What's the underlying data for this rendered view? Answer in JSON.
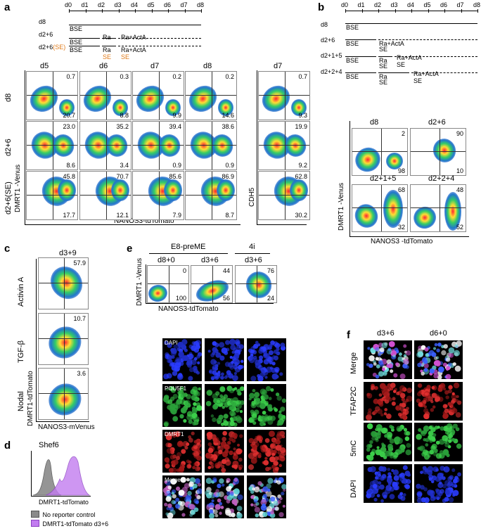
{
  "panels": {
    "a": {
      "label": "a",
      "timeline_days": [
        "d0",
        "d1",
        "d2",
        "d3",
        "d4",
        "d5",
        "d6",
        "d7",
        "d8"
      ],
      "rows": [
        {
          "name": "d8",
          "segments": [
            "BSE"
          ]
        },
        {
          "name": "d2+6",
          "segments": [
            "BSE",
            "Ra",
            "Ra+ActA"
          ]
        },
        {
          "name_main": "d2+6",
          "name_se": "(SE)",
          "segments": [
            "BSE",
            "Ra",
            "Ra+ActA"
          ],
          "se_marks": [
            "SE",
            "SE"
          ]
        }
      ],
      "col_headers": [
        "d5",
        "d6",
        "d7",
        "d8"
      ],
      "cdh5_header": "d7",
      "row_labels": [
        "d8",
        "d2+6",
        "d2+6(SE)"
      ],
      "y_axis": "DMRT1 -Venus",
      "x_axis": "NANOS3-tdTomato",
      "cdh5_axis": "CDH5",
      "values": [
        [
          [
            "0.7",
            "20.7"
          ],
          [
            "0.3",
            "8.8"
          ],
          [
            "0.2",
            "9.9"
          ],
          [
            "0.2",
            "14.6"
          ],
          [
            "0.7",
            "9.3"
          ]
        ],
        [
          [
            "23.0",
            "8.6"
          ],
          [
            "35.2",
            "3.4"
          ],
          [
            "39.4",
            "0.9"
          ],
          [
            "38.6",
            "0.9"
          ],
          [
            "19.9",
            "9.2"
          ]
        ],
        [
          [
            "45.8",
            "17.7"
          ],
          [
            "70.7",
            "12.1"
          ],
          [
            "85.6",
            "7.9"
          ],
          [
            "86.9",
            "8.7"
          ],
          [
            "62.8",
            "30.2"
          ]
        ]
      ]
    },
    "b": {
      "label": "b",
      "timeline_days": [
        "d0",
        "d1",
        "d2",
        "d3",
        "d4",
        "d5",
        "d6",
        "d7",
        "d8"
      ],
      "rows": [
        {
          "name": "d8",
          "segs": [
            "BSE"
          ]
        },
        {
          "name": "d2+6",
          "segs": [
            "BSE",
            "Ra+ActA"
          ],
          "se": [
            "SE"
          ]
        },
        {
          "name": "d2+1+5",
          "segs": [
            "BSE",
            "Ra",
            "Ra+ActA"
          ],
          "se": [
            "SE",
            "SE"
          ]
        },
        {
          "name": "d2+2+4",
          "segs": [
            "BSE",
            "Ra",
            "Ra+ActA"
          ],
          "se": [
            "SE",
            "SE"
          ]
        }
      ],
      "plots": [
        {
          "title": "d8",
          "tr": "2",
          "br": "98"
        },
        {
          "title": "d2+6",
          "tr": "90",
          "br": "10"
        },
        {
          "title": "d2+1+5",
          "tr": "68",
          "br": "32"
        },
        {
          "title": "d2+2+4",
          "tr": "48",
          "br": "52"
        }
      ],
      "y_axis": "DMRT1 -Venus",
      "x_axis": "NANOS3 -tdTomato"
    },
    "c": {
      "label": "c",
      "title": "d3+9",
      "plots": [
        {
          "row": "Activin A",
          "val": "57.9"
        },
        {
          "row": "TGF-β",
          "val": "10.7"
        },
        {
          "row": "Nodal",
          "val": "3.6"
        }
      ],
      "y_axis": "DMRT1-tdTomato",
      "x_axis": "NANOS3-mVenus"
    },
    "d": {
      "label": "d",
      "title": "Shef6",
      "x_axis": "DMRT1-tdTomato",
      "legend": [
        "No reporter control",
        "DMRT1-tdTomato d3+6"
      ],
      "colors": {
        "control": "#888888",
        "reporter": "#c27cf0"
      }
    },
    "e": {
      "label": "e",
      "group1": "E8-preME",
      "group2": "4i",
      "plots": [
        {
          "title": "d8+0",
          "tr": "0",
          "br": "100"
        },
        {
          "title": "d3+6",
          "tr": "44",
          "br": "56"
        },
        {
          "title": "d3+6",
          "tr": "76",
          "br": "24"
        }
      ],
      "y_axis": "DMRT1 -Venus",
      "x_axis": "NANOS3-tdTomato",
      "stains": [
        "DAPI",
        "POU5F1",
        "DMRT1",
        "Merge"
      ]
    },
    "f": {
      "label": "f",
      "cols": [
        "d3+6",
        "d6+0"
      ],
      "rows": [
        "Merge",
        "TFAP2C",
        "5mC",
        "DAPI"
      ]
    }
  }
}
